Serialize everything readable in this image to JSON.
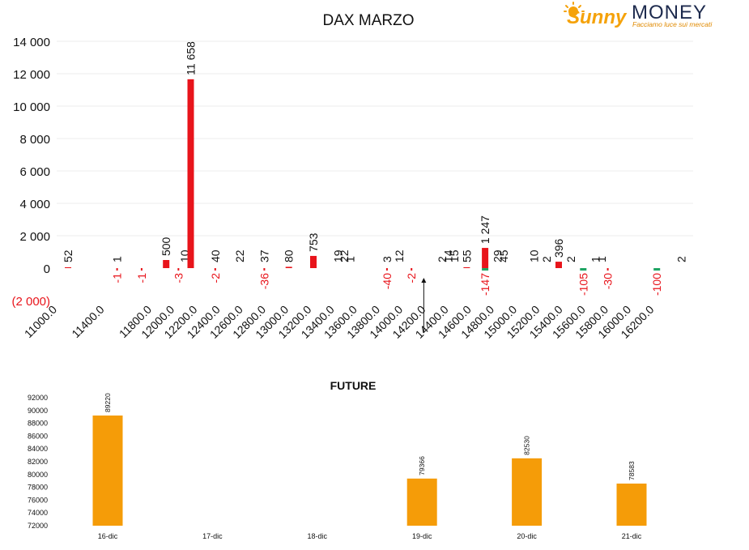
{
  "logo": {
    "word1": "Sunny",
    "word2": "MONEY",
    "tagline": "Facciamo luce sui mercati",
    "colors": {
      "sun": "#f5a20a",
      "dark": "#1d2a4d",
      "tag": "#e08a00"
    }
  },
  "colors": {
    "call": "#e8141b",
    "put": "#1fa463",
    "future": "#f59c08",
    "negative": "#e8141b"
  },
  "chart_data": [
    {
      "type": "bar",
      "title": "DAX MARZO",
      "ylim": [
        -2000,
        14000
      ],
      "yticks": [
        {
          "v": 14000,
          "label": "14 000"
        },
        {
          "v": 12000,
          "label": "12 000"
        },
        {
          "v": 10000,
          "label": "10 000"
        },
        {
          "v": 8000,
          "label": "8 000"
        },
        {
          "v": 6000,
          "label": "6 000"
        },
        {
          "v": 4000,
          "label": "4 000"
        },
        {
          "v": 2000,
          "label": "2 000"
        },
        {
          "v": 0,
          "label": "0"
        },
        {
          "v": -2000,
          "label": "(2 000)"
        }
      ],
      "grid": true,
      "x_tick_labels": [
        "11000.0",
        "11400.0",
        "11800.0",
        "12000.0",
        "12200.0",
        "12400.0",
        "12600.0",
        "12800.0",
        "13000.0",
        "13200.0",
        "13400.0",
        "13600.0",
        "13800.0",
        "14000.0",
        "14200.0",
        "14400.0",
        "14600.0",
        "14800.0",
        "15000.0",
        "15200.0",
        "15400.0",
        "15600.0",
        "15800.0",
        "16000.0",
        "16200.0"
      ],
      "calls": [
        {
          "s": 11000,
          "v": 52,
          "label": "52"
        },
        {
          "s": 11400,
          "v": 1,
          "label": "1"
        },
        {
          "s": 11800,
          "v": 500,
          "label": "500"
        },
        {
          "s": 11950,
          "v": 10,
          "label": "10"
        },
        {
          "s": 12000,
          "v": 11658,
          "label": "11 658"
        },
        {
          "s": 12200,
          "v": 40,
          "label": "40"
        },
        {
          "s": 12400,
          "v": 22,
          "label": "22"
        },
        {
          "s": 12600,
          "v": 37,
          "label": "37"
        },
        {
          "s": 12800,
          "v": 80,
          "label": "80"
        },
        {
          "s": 13000,
          "v": 753,
          "label": "753"
        },
        {
          "s": 13200,
          "v": 19,
          "label": "19"
        },
        {
          "s": 13250,
          "v": 22,
          "label": "22"
        },
        {
          "s": 13300,
          "v": 1,
          "label": "1"
        },
        {
          "s": 13600,
          "v": 3,
          "label": "3"
        },
        {
          "s": 13700,
          "v": 12,
          "label": "12"
        },
        {
          "s": 14050,
          "v": 2,
          "label": "2"
        },
        {
          "s": 14100,
          "v": 14,
          "label": "14"
        },
        {
          "s": 14150,
          "v": 15,
          "label": "15"
        },
        {
          "s": 14250,
          "v": 55,
          "label": "55"
        },
        {
          "s": 14400,
          "v": 1247,
          "label": "1 247"
        },
        {
          "s": 14500,
          "v": 29,
          "label": "29"
        },
        {
          "s": 14550,
          "v": 45,
          "label": "45"
        },
        {
          "s": 14800,
          "v": 10,
          "label": "10"
        },
        {
          "s": 14900,
          "v": 2,
          "label": "2"
        },
        {
          "s": 15000,
          "v": 396,
          "label": "396"
        },
        {
          "s": 15100,
          "v": 2,
          "label": "2"
        },
        {
          "s": 15300,
          "v": 1,
          "label": "1"
        },
        {
          "s": 15350,
          "v": 1,
          "label": "1"
        },
        {
          "s": 16000,
          "v": 2,
          "label": "2"
        }
      ],
      "puts": [
        {
          "s": 11400,
          "v": -1,
          "label": "-1"
        },
        {
          "s": 11600,
          "v": -1,
          "label": "-1"
        },
        {
          "s": 11900,
          "v": -3,
          "label": "-3"
        },
        {
          "s": 12200,
          "v": -2,
          "label": "-2"
        },
        {
          "s": 12600,
          "v": -36,
          "label": "-36"
        },
        {
          "s": 13600,
          "v": -40,
          "label": "-40"
        },
        {
          "s": 13800,
          "v": -2,
          "label": "-2"
        },
        {
          "s": 14400,
          "v": -147,
          "label": "-147"
        },
        {
          "s": 15200,
          "v": -105,
          "label": "-105"
        },
        {
          "s": 15400,
          "v": -30,
          "label": "-30"
        },
        {
          "s": 15800,
          "v": -100,
          "label": "-100"
        }
      ],
      "marker_strike": 13900
    },
    {
      "type": "bar",
      "title": "FUTURE",
      "categories": [
        "16-dic",
        "17-dic",
        "18-dic",
        "19-dic",
        "20-dic",
        "21-dic"
      ],
      "values": [
        89220,
        null,
        null,
        79366,
        82530,
        78583
      ],
      "ylim": [
        72000,
        92000
      ],
      "yticks": [
        {
          "v": 92000,
          "label": "92000"
        },
        {
          "v": 90000,
          "label": "90000"
        },
        {
          "v": 88000,
          "label": "88000"
        },
        {
          "v": 86000,
          "label": "86000"
        },
        {
          "v": 84000,
          "label": "84000"
        },
        {
          "v": 82000,
          "label": "82000"
        },
        {
          "v": 80000,
          "label": "80000"
        },
        {
          "v": 78000,
          "label": "78000"
        },
        {
          "v": 76000,
          "label": "76000"
        },
        {
          "v": 74000,
          "label": "74000"
        },
        {
          "v": 72000,
          "label": "72000"
        }
      ],
      "grid": false
    }
  ]
}
